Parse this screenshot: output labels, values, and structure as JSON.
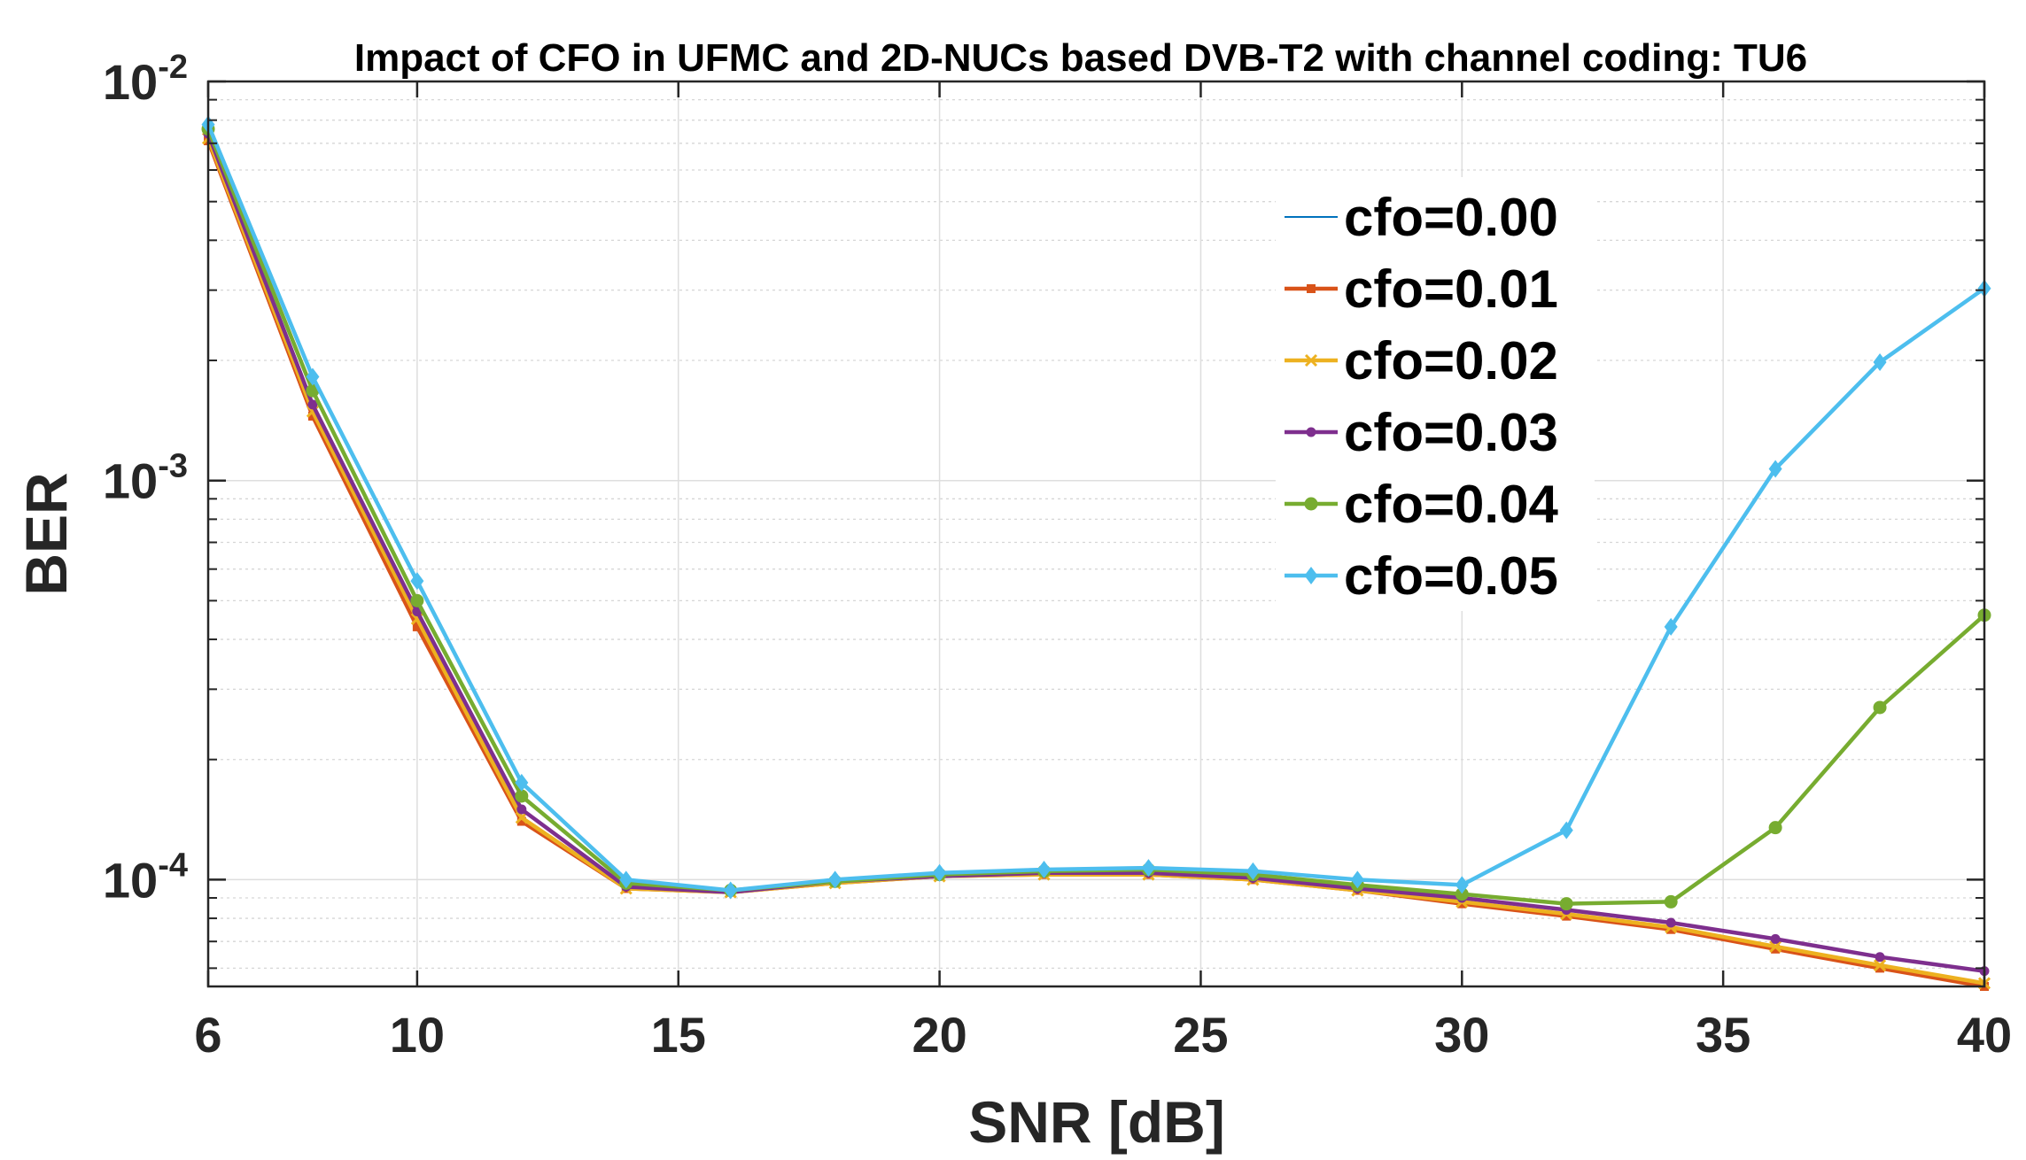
{
  "chart_data": {
    "type": "line",
    "title": "Impact of CFO in UFMC and 2D-NUCs based DVB-T2 with channel coding: TU6",
    "xlabel": "SNR [dB]",
    "ylabel": "BER",
    "xlim": [
      6,
      40
    ],
    "ylim": [
      5.4e-05,
      0.01
    ],
    "yscale": "log",
    "grid": true,
    "legend_position": "top-right",
    "x_ticks": [
      6,
      10,
      15,
      20,
      25,
      30,
      35,
      40
    ],
    "x_tick_labels": [
      "6",
      "10",
      "15",
      "20",
      "25",
      "30",
      "35",
      "40"
    ],
    "y_ticks": [
      0.0001,
      0.001,
      0.01
    ],
    "y_tick_labels": [
      {
        "base": "10",
        "exp": "-4"
      },
      {
        "base": "10",
        "exp": "-3"
      },
      {
        "base": "10",
        "exp": "-2"
      }
    ],
    "x": [
      6,
      8,
      10,
      12,
      14,
      16,
      18,
      20,
      22,
      24,
      26,
      28,
      30,
      32,
      34,
      36,
      38,
      40
    ],
    "series": [
      {
        "name": "cfo=0.00",
        "color": "#0072BD",
        "marker": "none",
        "values": [
          0.0072,
          0.00148,
          0.00044,
          0.000142,
          9.5e-05,
          9.3e-05,
          9.8e-05,
          0.000102,
          0.000103,
          0.000103,
          0.0001,
          9.4e-05,
          8.8e-05,
          8.2e-05,
          7.6e-05,
          6.8e-05,
          6.1e-05,
          5.5e-05
        ]
      },
      {
        "name": "cfo=0.01",
        "color": "#D95319",
        "marker": "square",
        "values": [
          0.0071,
          0.00145,
          0.00043,
          0.00014,
          9.5e-05,
          9.3e-05,
          9.8e-05,
          0.000102,
          0.000103,
          0.000103,
          0.0001,
          9.4e-05,
          8.7e-05,
          8.1e-05,
          7.5e-05,
          6.7e-05,
          6e-05,
          5.4e-05
        ]
      },
      {
        "name": "cfo=0.02",
        "color": "#EDB120",
        "marker": "x",
        "values": [
          0.0072,
          0.00149,
          0.00045,
          0.000143,
          9.5e-05,
          9.3e-05,
          9.8e-05,
          0.000102,
          0.000103,
          0.000103,
          0.0001,
          9.4e-05,
          8.8e-05,
          8.2e-05,
          7.6e-05,
          6.8e-05,
          6.1e-05,
          5.5e-05
        ]
      },
      {
        "name": "cfo=0.03",
        "color": "#7E2F8E",
        "marker": "dot",
        "values": [
          0.0074,
          0.00155,
          0.00047,
          0.00015,
          9.6e-05,
          9.3e-05,
          9.9e-05,
          0.000102,
          0.000104,
          0.000104,
          0.000101,
          9.5e-05,
          9e-05,
          8.4e-05,
          7.8e-05,
          7.1e-05,
          6.4e-05,
          5.9e-05
        ]
      },
      {
        "name": "cfo=0.04",
        "color": "#77AC30",
        "marker": "circle",
        "values": [
          0.0076,
          0.00168,
          0.0005,
          0.000162,
          9.8e-05,
          9.4e-05,
          9.9e-05,
          0.000103,
          0.000105,
          0.000106,
          0.000103,
          9.7e-05,
          9.2e-05,
          8.7e-05,
          8.8e-05,
          0.000135,
          0.00027,
          0.00046
        ]
      },
      {
        "name": "cfo=0.05",
        "color": "#4DBEEE",
        "marker": "diamond",
        "values": [
          0.0078,
          0.00182,
          0.00056,
          0.000175,
          0.0001,
          9.4e-05,
          0.0001,
          0.000104,
          0.000106,
          0.000107,
          0.000105,
          0.0001,
          9.7e-05,
          0.000133,
          0.00043,
          0.00107,
          0.00198,
          0.00303
        ]
      }
    ]
  }
}
